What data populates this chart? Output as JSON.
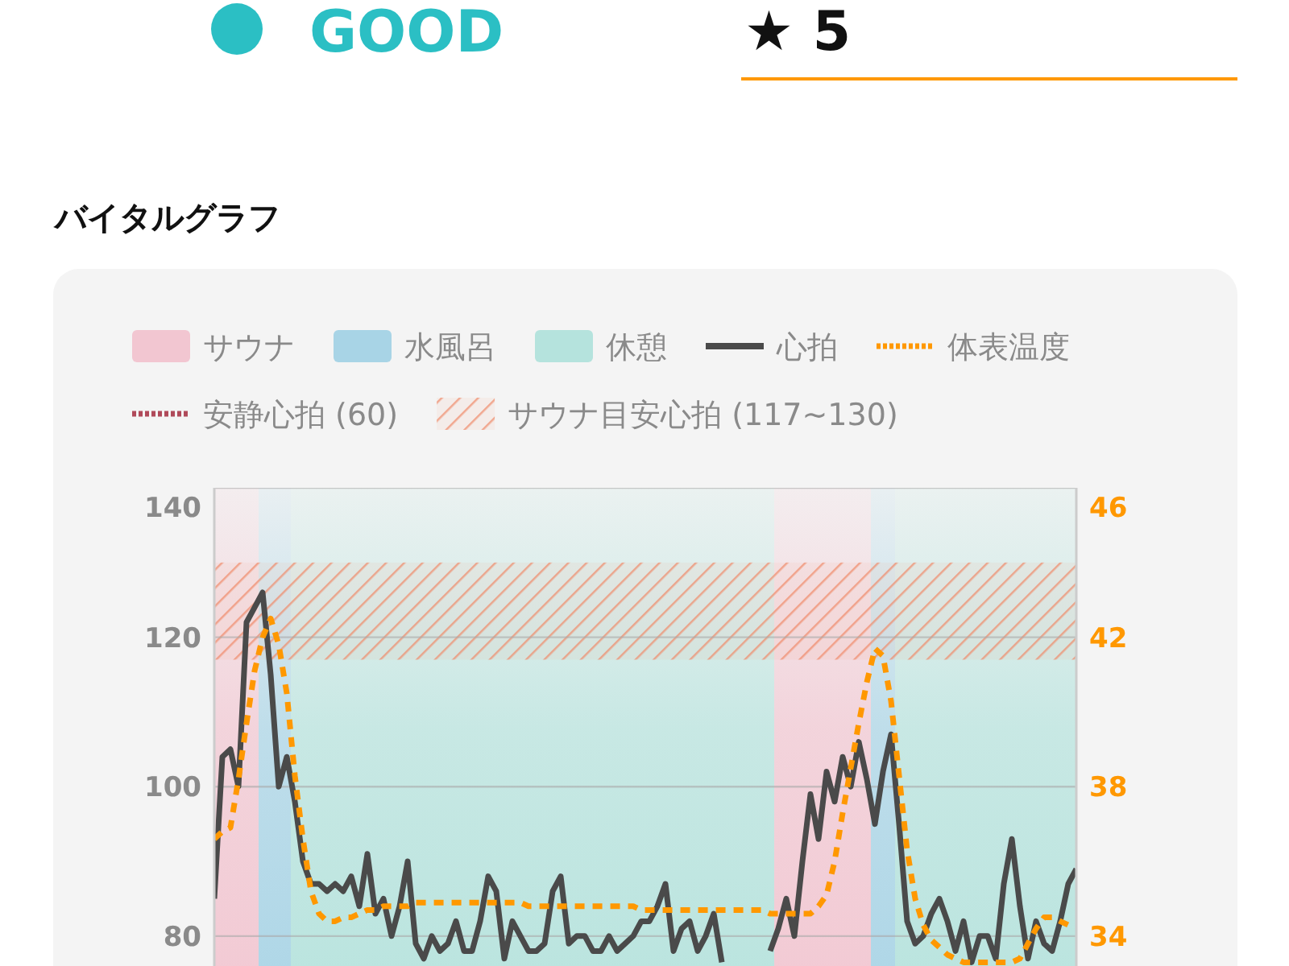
{
  "chart_data": {
    "type": "line",
    "title": "バイタルグラフ",
    "annotations": [
      "GOOD",
      "★ 5"
    ],
    "categories": [
      null,
      null,
      null,
      null,
      null,
      null,
      null,
      null,
      null,
      null,
      null,
      null,
      null,
      null,
      null,
      null,
      null,
      null,
      null,
      null,
      null,
      null,
      null,
      null,
      null,
      null,
      null,
      null,
      null,
      null,
      null,
      null,
      null,
      null,
      null,
      null,
      null,
      null,
      null,
      null,
      null,
      null,
      null,
      null,
      null,
      null,
      null,
      null,
      null,
      null,
      null,
      null,
      null,
      null,
      null,
      null,
      null,
      null,
      null,
      null,
      null,
      null,
      null,
      null,
      null,
      null,
      null,
      null,
      null,
      null,
      null,
      null,
      null,
      null,
      null,
      null,
      null,
      null,
      null,
      null,
      null,
      null,
      null,
      null,
      null,
      null,
      null,
      null,
      null,
      null,
      null,
      null,
      null,
      null,
      null,
      null,
      null,
      null,
      null,
      null,
      null,
      null,
      null,
      null,
      null,
      null,
      null,
      null
    ],
    "series": [
      {
        "name": "サウナ",
        "type": "bar",
        "color": "#f2c6d1",
        "values": [
          140,
          140,
          140,
          140,
          140,
          140,
          null,
          null,
          null,
          null,
          null,
          null,
          null,
          null,
          null,
          null,
          null,
          null,
          null,
          null,
          null,
          null,
          null,
          null,
          null,
          null,
          null,
          null,
          null,
          null,
          null,
          null,
          null,
          null,
          null,
          null,
          null,
          null,
          null,
          null,
          null,
          null,
          null,
          null,
          null,
          null,
          null,
          null,
          null,
          null,
          null,
          null,
          null,
          null,
          null,
          null,
          null,
          null,
          null,
          null,
          null,
          null,
          null,
          null,
          null,
          null,
          null,
          null,
          null,
          null,
          140,
          140,
          140,
          140,
          140,
          140,
          140,
          140,
          140,
          140,
          140,
          140,
          null,
          null,
          null,
          null,
          null,
          null,
          null,
          null,
          null,
          null,
          null,
          null,
          null,
          null,
          null,
          null,
          null,
          null,
          null,
          null,
          null,
          null,
          null,
          null,
          null,
          null
        ]
      },
      {
        "name": "水風呂",
        "type": "bar",
        "color": "#a8d4e6",
        "values": [
          null,
          null,
          null,
          null,
          null,
          null,
          140,
          140,
          140,
          140,
          null,
          null,
          null,
          null,
          null,
          null,
          null,
          null,
          null,
          null,
          null,
          null,
          null,
          null,
          null,
          null,
          null,
          null,
          null,
          null,
          null,
          null,
          null,
          null,
          null,
          null,
          null,
          null,
          null,
          null,
          null,
          null,
          null,
          null,
          null,
          null,
          null,
          null,
          null,
          null,
          null,
          null,
          null,
          null,
          null,
          null,
          null,
          null,
          null,
          null,
          null,
          null,
          null,
          null,
          null,
          null,
          null,
          null,
          null,
          null,
          null,
          null,
          null,
          null,
          null,
          null,
          null,
          null,
          null,
          null,
          null,
          null,
          140,
          140,
          140,
          null,
          null,
          null,
          null,
          null,
          null,
          null,
          null,
          null,
          null,
          null,
          null,
          null,
          null,
          null,
          null,
          null,
          null,
          null,
          null,
          null,
          null,
          null
        ]
      },
      {
        "name": "休憩",
        "type": "bar",
        "color": "#b5e3dd",
        "values": [
          null,
          null,
          null,
          null,
          null,
          null,
          null,
          null,
          null,
          null,
          140,
          140,
          140,
          140,
          140,
          140,
          140,
          140,
          140,
          140,
          140,
          140,
          140,
          140,
          140,
          140,
          140,
          140,
          140,
          140,
          140,
          140,
          140,
          140,
          140,
          140,
          140,
          140,
          140,
          140,
          140,
          140,
          140,
          140,
          140,
          140,
          140,
          140,
          140,
          140,
          140,
          140,
          140,
          140,
          140,
          140,
          140,
          140,
          140,
          140,
          140,
          140,
          140,
          140,
          140,
          140,
          140,
          140,
          140,
          140,
          null,
          null,
          null,
          null,
          null,
          null,
          null,
          null,
          null,
          null,
          null,
          null,
          null,
          null,
          null,
          140,
          140,
          140,
          140,
          140,
          140,
          140,
          140,
          140,
          140,
          140,
          140,
          140,
          140,
          140,
          140,
          140,
          140,
          140,
          140,
          140,
          140,
          140
        ]
      },
      {
        "name": "心拍",
        "color": "#4a4a4a",
        "line_style": "solid",
        "values": [
          85,
          104,
          105,
          100,
          122,
          124,
          126,
          115,
          100,
          104,
          98,
          90,
          87,
          87,
          86,
          87,
          86,
          88,
          84,
          91,
          83,
          85,
          80,
          84,
          90,
          79,
          77,
          80,
          78,
          79,
          82,
          78,
          78,
          82,
          88,
          86,
          77,
          82,
          80,
          78,
          78,
          79,
          86,
          88,
          79,
          80,
          80,
          78,
          78,
          80,
          78,
          79,
          80,
          82,
          82,
          84,
          87,
          78,
          81,
          82,
          78,
          80,
          83,
          76.5,
          null,
          null,
          null,
          null,
          null,
          78,
          81,
          85,
          80,
          90,
          99,
          93,
          102,
          98,
          104,
          100,
          106,
          101,
          95,
          102,
          107,
          95,
          82,
          79,
          80,
          83,
          85,
          82,
          78,
          82,
          76.5,
          80,
          80,
          77,
          87,
          93,
          84,
          77,
          82,
          79,
          78,
          82,
          87,
          89
        ]
      },
      {
        "name": "体表温度",
        "color": "#ff9800",
        "line_style": "dotted",
        "axis": "y2",
        "values": [
          36.6,
          36.8,
          36.9,
          38.2,
          39.7,
          41.1,
          42,
          42.5,
          41.8,
          40.5,
          38.3,
          36.6,
          35.2,
          34.6,
          34.4,
          34.4,
          34.5,
          34.5,
          34.6,
          34.7,
          34.7,
          34.8,
          34.8,
          34.8,
          34.8,
          34.9,
          34.9,
          34.9,
          34.9,
          34.9,
          34.9,
          34.9,
          34.9,
          34.9,
          34.9,
          34.9,
          34.9,
          34.9,
          34.9,
          34.8,
          34.8,
          34.8,
          34.8,
          34.8,
          34.8,
          34.8,
          34.8,
          34.8,
          34.8,
          34.8,
          34.8,
          34.8,
          34.8,
          34.7,
          34.7,
          34.7,
          34.7,
          34.7,
          34.7,
          34.7,
          34.7,
          34.7,
          34.7,
          34.7,
          34.7,
          34.7,
          34.7,
          34.7,
          34.7,
          34.6,
          34.6,
          34.6,
          34.6,
          34.6,
          34.6,
          34.8,
          35.1,
          36.0,
          37.3,
          38.5,
          39.7,
          40.8,
          41.7,
          41.5,
          40.3,
          38.3,
          36.3,
          35.0,
          34.3,
          33.9,
          33.7,
          33.5,
          33.4,
          33.3,
          33.3,
          33.3,
          33.3,
          33.3,
          33.3,
          33.3,
          33.4,
          33.8,
          34.2,
          34.5,
          34.5,
          34.4,
          34.3,
          34.3
        ]
      },
      {
        "name": "安静心拍 (60)",
        "color": "#b04a5a",
        "line_style": "dotted",
        "values": [
          null,
          null,
          null,
          null,
          null,
          null,
          null,
          null,
          null,
          null,
          null,
          null,
          null,
          null,
          null,
          null,
          null,
          null,
          null,
          null,
          null,
          null,
          null,
          null,
          null,
          null,
          null,
          null,
          null,
          null,
          null,
          null,
          null,
          null,
          null,
          null,
          null,
          null,
          null,
          null,
          null,
          null,
          null,
          null,
          null,
          null,
          null,
          null,
          null,
          null,
          null,
          null,
          null,
          null,
          null,
          null,
          null,
          null,
          null,
          null,
          null,
          null,
          null,
          null,
          null,
          null,
          null,
          null,
          null,
          null,
          null,
          null,
          null,
          null,
          null,
          null,
          null,
          null,
          null,
          null,
          null,
          null,
          null,
          null,
          null,
          null,
          null,
          null,
          null,
          null,
          null,
          null,
          null,
          null,
          null,
          null,
          null,
          null,
          null,
          null,
          null,
          null,
          null,
          null,
          null,
          null,
          null,
          null
        ]
      }
    ],
    "bands": [
      {
        "axis": "y",
        "from": 117,
        "to": 130,
        "label": "サウナ目安心拍 (117~130)",
        "color": "#f08a6a"
      }
    ],
    "ylim": [
      76,
      140
    ],
    "yticks": [
      80,
      100,
      120,
      140
    ],
    "y2lim": [
      33.2,
      46
    ],
    "y2ticks": [
      34,
      38,
      42,
      46
    ],
    "grid": "y",
    "legend": "top",
    "marker": "none"
  }
}
